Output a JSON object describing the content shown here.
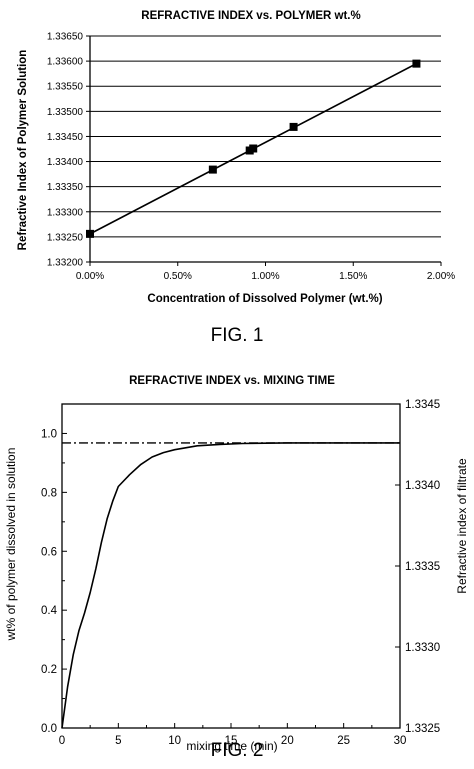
{
  "figures": {
    "fig1": {
      "caption": "FIG. 1"
    },
    "fig2": {
      "caption": "FIG. 2"
    }
  },
  "chart_data": [
    {
      "type": "line",
      "title": "REFRACTIVE INDEX vs. POLYMER wt.%",
      "xlabel": "Concentration of Dissolved Polymer (wt.%)",
      "ylabel": "Refractive Index of Polymer Solution",
      "xlim": [
        0,
        2
      ],
      "ylim": [
        1.332,
        1.3365
      ],
      "x_ticks": [
        0,
        0.5,
        1,
        1.5,
        2
      ],
      "x_tick_labels": [
        "0.00%",
        "0.50%",
        "1.00%",
        "1.50%",
        "2.00%"
      ],
      "y_ticks": [
        1.332,
        1.3325,
        1.333,
        1.3335,
        1.334,
        1.3345,
        1.335,
        1.3355,
        1.336,
        1.3365
      ],
      "y_tick_labels": [
        "1.33200",
        "1.33250",
        "1.33300",
        "1.33350",
        "1.33400",
        "1.33450",
        "1.33500",
        "1.33550",
        "1.33600",
        "1.33650"
      ],
      "grid": "horizontal",
      "legend": "none",
      "series": [
        {
          "markers": "square",
          "points": [
            {
              "x": 0.0,
              "y": 1.33256
            },
            {
              "x": 0.7,
              "y": 1.33384
            },
            {
              "x": 0.91,
              "y": 1.33422
            },
            {
              "x": 0.93,
              "y": 1.33426
            },
            {
              "x": 1.16,
              "y": 1.33469
            },
            {
              "x": 1.86,
              "y": 1.33595
            }
          ]
        }
      ],
      "fit_line": {
        "x": [
          0.0,
          1.86
        ],
        "y": [
          1.33256,
          1.33595
        ]
      }
    },
    {
      "type": "line",
      "title": "REFRACTIVE INDEX vs. MIXING TIME",
      "xlabel": "mixing time (min)",
      "ylabel": "wt% of polymer dissolved in solution",
      "y2label": "Refractive index of filtrate",
      "xlim": [
        0,
        30
      ],
      "ylim": [
        0,
        1.1
      ],
      "y2lim": [
        1.3325,
        1.3345
      ],
      "x_ticks": [
        0,
        5,
        10,
        15,
        20,
        25,
        30
      ],
      "x_tick_labels": [
        "0",
        "5",
        "10",
        "15",
        "20",
        "25",
        "30"
      ],
      "y_ticks": [
        0,
        0.2,
        0.4,
        0.6,
        0.8,
        1.0
      ],
      "y_tick_labels": [
        "0.0",
        "0.2",
        "0.4",
        "0.6",
        "0.8",
        "1.0"
      ],
      "y2_ticks": [
        1.3325,
        1.333,
        1.3335,
        1.334,
        1.3345
      ],
      "y2_tick_labels": [
        "1.3325",
        "1.3330",
        "1.3335",
        "1.3340",
        "1.3345"
      ],
      "grid": "none",
      "legend": "none",
      "series": [
        {
          "style": "solid",
          "x": [
            0,
            0.5,
            1,
            1.5,
            2,
            2.5,
            3,
            3.5,
            4,
            4.5,
            5,
            6,
            7,
            8,
            9,
            10,
            12,
            14,
            16,
            18,
            20,
            25,
            30
          ],
          "y": [
            0,
            0.14,
            0.25,
            0.33,
            0.39,
            0.46,
            0.54,
            0.63,
            0.71,
            0.77,
            0.82,
            0.86,
            0.895,
            0.92,
            0.935,
            0.945,
            0.958,
            0.963,
            0.966,
            0.967,
            0.968,
            0.968,
            0.968
          ]
        },
        {
          "style": "dash-dot",
          "x": [
            0,
            30
          ],
          "y": [
            0.968,
            0.968
          ]
        }
      ]
    }
  ]
}
